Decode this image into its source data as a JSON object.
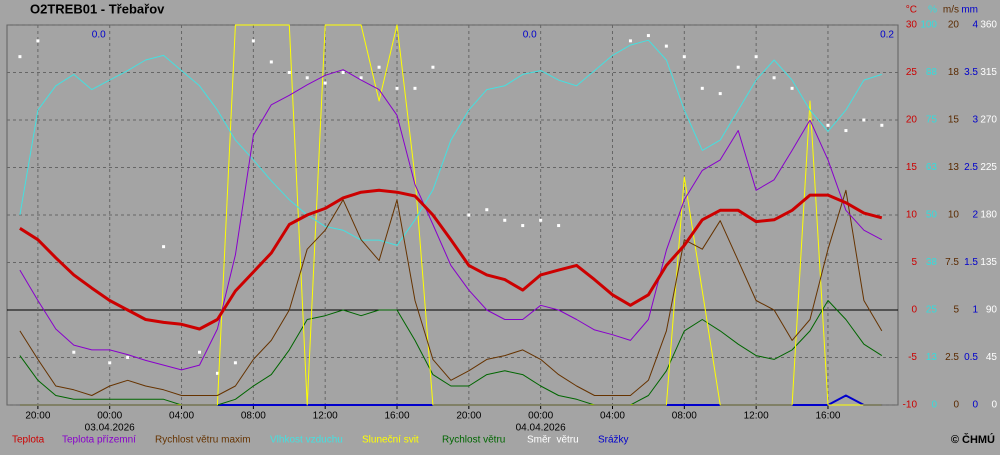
{
  "chart_data": {
    "type": "line",
    "title": "O2TREB01 - Třebařov",
    "copyright": "© ČHMÚ",
    "xlim": [
      -5.72,
      43.9
    ],
    "xticks": [
      {
        "value": -4,
        "label": "20:00"
      },
      {
        "value": 0,
        "label": "00:00"
      },
      {
        "value": 4,
        "label": "04:00"
      },
      {
        "value": 8,
        "label": "08:00"
      },
      {
        "value": 12,
        "label": "12:00"
      },
      {
        "value": 16,
        "label": "16:00"
      },
      {
        "value": 20,
        "label": "20:00"
      },
      {
        "value": 24,
        "label": "00:00"
      },
      {
        "value": 28,
        "label": "04:00"
      },
      {
        "value": 32,
        "label": "08:00"
      },
      {
        "value": 36,
        "label": "12:00"
      },
      {
        "value": 40,
        "label": "16:00"
      }
    ],
    "x_dates": [
      {
        "value": 0,
        "label": "03.04.2026"
      },
      {
        "value": 24,
        "label": "04.04.2026"
      }
    ],
    "day_totals": [
      {
        "value": 0,
        "label": "0.0"
      },
      {
        "value": 24,
        "label": "0.0"
      },
      {
        "value": 43.9,
        "label": "0.2"
      }
    ],
    "grid": true,
    "axes": [
      {
        "unit": "°C",
        "color": "#cc0000",
        "ylim": [
          -10,
          30
        ],
        "yticks": [
          -10,
          -5,
          0,
          5,
          10,
          15,
          20,
          25,
          30
        ]
      },
      {
        "unit": "%",
        "color": "#33dddd",
        "ylim": [
          0,
          100
        ],
        "yticks": [
          0,
          {
            "value": 12.5,
            "label": "13"
          },
          25,
          {
            "value": 37.5,
            "label": "38"
          },
          50,
          {
            "value": 62.5,
            "label": "63"
          },
          75,
          {
            "value": 87.5,
            "label": "88"
          },
          100
        ]
      },
      {
        "unit": "m/s",
        "color": "#5a2a00",
        "ylim": [
          0,
          20
        ],
        "yticks": [
          0,
          2.5,
          5,
          7.5,
          10,
          {
            "value": 12.5,
            "label": "13"
          },
          15,
          {
            "value": 17.5,
            "label": "18"
          },
          20
        ]
      },
      {
        "unit": "mm",
        "color": "#0000cc",
        "ylim": [
          0,
          4
        ],
        "yticks": [
          0,
          0.5,
          1,
          1.5,
          2,
          2.5,
          3,
          3.5,
          4
        ]
      },
      {
        "color": "#ffffff",
        "ylim": [
          0,
          360
        ],
        "yticks": [
          0,
          45,
          90,
          135,
          180,
          225,
          270,
          315,
          360
        ]
      }
    ],
    "x": [
      -5,
      -4,
      -3,
      -2,
      -1,
      0,
      1,
      2,
      3,
      4,
      5,
      6,
      7,
      8,
      9,
      10,
      11,
      12,
      13,
      14,
      15,
      16,
      17,
      18,
      19,
      20,
      21,
      22,
      23,
      24,
      25,
      26,
      27,
      28,
      29,
      30,
      31,
      32,
      33,
      34,
      35,
      36,
      37,
      38,
      39,
      40,
      41,
      42,
      43
    ],
    "series": [
      {
        "name": "Teplota",
        "color": "#cc0000",
        "axis": 0,
        "kind": "line",
        "width": 3,
        "values": [
          8.6,
          7.4,
          5.5,
          3.7,
          2.3,
          1,
          0,
          -1,
          -1.3,
          -1.5,
          -2,
          -1,
          2,
          4,
          6,
          9,
          10,
          10.7,
          11.8,
          12.4,
          12.6,
          12.4,
          12,
          10,
          7.4,
          4.7,
          3.7,
          3.2,
          2.1,
          3.7,
          4.2,
          4.7,
          3.2,
          1.6,
          0.5,
          1.6,
          4.7,
          6.8,
          9.5,
          10.5,
          10.5,
          9.3,
          9.5,
          10.5,
          12.1,
          12.1,
          11.3,
          10.2,
          9.7
        ]
      },
      {
        "name": "Teplota přízemní",
        "color": "#8800cc",
        "axis": 0,
        "kind": "line",
        "width": 1,
        "values": [
          4.2,
          1,
          -2,
          -3.7,
          -4.2,
          -4.2,
          -4.7,
          -5.3,
          -5.8,
          -6.3,
          -5.8,
          -2,
          5.8,
          18.4,
          21.6,
          22.6,
          23.7,
          24.7,
          25.3,
          24.2,
          23.2,
          20.5,
          13.2,
          9,
          4.7,
          2.1,
          0,
          -1,
          -1,
          0.5,
          0,
          -1,
          -2.1,
          -2.6,
          -3.2,
          -1,
          6.3,
          11.6,
          14.7,
          15.8,
          18.9,
          12.6,
          13.7,
          16.8,
          20,
          15.8,
          10.5,
          8.4,
          7.4
        ]
      },
      {
        "name": "Rychlost větru maxim",
        "color": "#663300",
        "axis": 2,
        "kind": "line",
        "width": 1,
        "values": [
          3.9,
          2.4,
          1,
          0.8,
          0.5,
          1,
          1.3,
          1,
          0.8,
          0.5,
          0.5,
          0.5,
          1,
          2.4,
          3.4,
          5,
          8.2,
          9.2,
          10.8,
          8.7,
          7.6,
          10.8,
          5.5,
          2.4,
          1.3,
          1.8,
          2.4,
          2.6,
          2.9,
          2.4,
          1.6,
          1,
          0.5,
          0.5,
          0.5,
          1.3,
          3.9,
          8.7,
          8.2,
          9.7,
          7.6,
          5.5,
          5,
          3.4,
          4.5,
          8.2,
          11.3,
          5.5,
          3.9
        ]
      },
      {
        "name": "Vlhkost vzduchu",
        "color": "#44e0e0",
        "axis": 1,
        "kind": "line",
        "width": 1,
        "values": [
          50,
          77.6,
          84,
          87,
          83,
          85.5,
          88,
          90.8,
          92,
          88,
          84,
          77.6,
          69.7,
          64.5,
          59,
          54,
          50,
          47,
          46,
          43.4,
          43.4,
          42,
          48.7,
          56.6,
          69.7,
          77.6,
          83,
          84,
          87,
          88,
          85.5,
          84,
          88,
          92,
          94.7,
          96,
          90.8,
          77.6,
          67,
          69.7,
          77.6,
          85.5,
          90.8,
          85.5,
          77.6,
          72,
          77.6,
          85.5,
          87
        ]
      },
      {
        "name": "Sluneční svit",
        "color": "#ffff00",
        "axis": 1,
        "kind": "line",
        "width": 1,
        "values": [
          0,
          0,
          0,
          0,
          0,
          0,
          0,
          0,
          0,
          0,
          0,
          0,
          100,
          100,
          100,
          100,
          0,
          100,
          100,
          100,
          80,
          100,
          60,
          0,
          0,
          0,
          0,
          0,
          0,
          0,
          0,
          0,
          0,
          0,
          0,
          0,
          0,
          60,
          30,
          0,
          0,
          0,
          0,
          0,
          80,
          0,
          0,
          0,
          0
        ]
      },
      {
        "name": "Rychlost větru",
        "color": "#006600",
        "axis": 2,
        "kind": "line",
        "width": 1,
        "values": [
          2.6,
          1.3,
          0.5,
          0.3,
          0.3,
          0.3,
          0.3,
          0.3,
          0.3,
          0,
          0,
          0,
          0.3,
          1,
          1.6,
          2.9,
          4.5,
          4.7,
          5,
          4.7,
          5,
          5,
          3.4,
          1.6,
          1,
          1,
          1.6,
          1.8,
          1.6,
          1,
          0.5,
          0.3,
          0,
          0,
          0,
          0.5,
          1.8,
          3.9,
          4.5,
          3.9,
          3.2,
          2.6,
          2.4,
          2.9,
          3.9,
          5.5,
          4.5,
          3.2,
          2.6
        ]
      },
      {
        "name": "Směr  větru",
        "color": "#ffffff",
        "axis": 4,
        "kind": "scatter",
        "values": [
          330,
          345,
          null,
          50,
          null,
          40,
          45,
          null,
          150,
          null,
          50,
          30,
          40,
          345,
          325,
          315,
          310,
          305,
          315,
          310,
          320,
          300,
          300,
          320,
          null,
          180,
          185,
          175,
          170,
          175,
          170,
          null,
          null,
          null,
          345,
          350,
          340,
          330,
          300,
          295,
          320,
          330,
          310,
          300,
          270,
          265,
          260,
          270,
          265
        ]
      },
      {
        "name": "Srážky",
        "color": "#0000cc",
        "axis": 3,
        "kind": "line",
        "width": 2,
        "values": [
          0,
          0,
          0,
          0,
          0,
          0,
          0,
          0,
          0,
          0,
          0,
          0,
          0,
          0,
          0,
          0,
          0,
          0,
          0,
          0,
          0,
          0,
          0,
          0,
          0,
          0,
          0,
          0,
          0,
          0,
          0,
          0,
          0,
          0,
          0,
          0,
          0,
          0,
          0,
          0,
          0,
          0,
          0,
          0,
          0,
          0,
          0.1,
          0,
          0
        ]
      }
    ]
  }
}
